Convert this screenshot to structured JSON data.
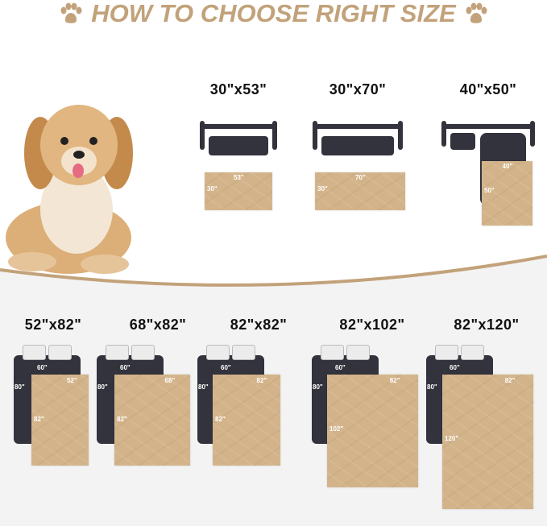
{
  "title": "HOW TO CHOOSE RIGHT SIZE",
  "colors": {
    "accent": "#c2a27a",
    "dark": "#33333d",
    "mat": "#d3b48a",
    "lower_bg": "#f3f3f3"
  },
  "icons": [
    "paw-icon",
    "dog-photo",
    "sofa-icon",
    "bed-icon"
  ],
  "sofa_sizes": [
    {
      "label": "30\"x53\"",
      "width": "53\"",
      "height": "30\""
    },
    {
      "label": "30\"x70\"",
      "width": "70\"",
      "height": "30\""
    },
    {
      "label": "40\"x50\"",
      "width": "40\"",
      "height": "50\""
    }
  ],
  "bed_sizes": [
    {
      "label": "52\"x82\"",
      "bed_width": "60\"",
      "bed_length": "80\"",
      "width": "52\"",
      "height": "82\""
    },
    {
      "label": "68\"x82\"",
      "bed_width": "60\"",
      "bed_length": "80\"",
      "width": "68\"",
      "height": "82\""
    },
    {
      "label": "82\"x82\"",
      "bed_width": "60\"",
      "bed_length": "80\"",
      "width": "82\"",
      "height": "82\""
    },
    {
      "label": "82\"x102\"",
      "bed_width": "60\"",
      "bed_length": "80\"",
      "width": "82\"",
      "height": "102\""
    },
    {
      "label": "82\"x120\"",
      "bed_width": "60\"",
      "bed_length": "80\"",
      "width": "82\"",
      "height": "120\""
    }
  ]
}
